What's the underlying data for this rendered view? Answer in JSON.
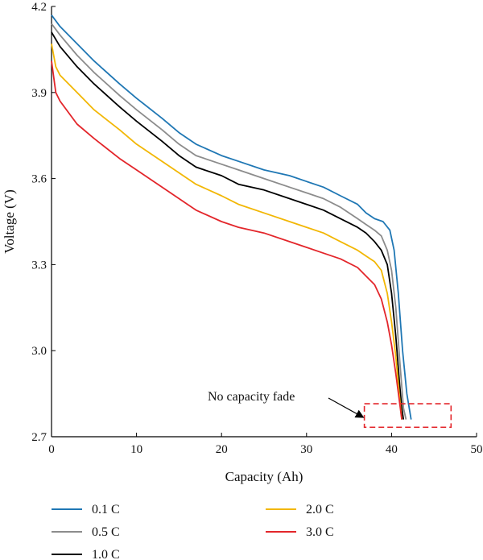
{
  "chart_data": {
    "type": "line",
    "xlabel": "Capacity (Ah)",
    "ylabel": "Voltage (V)",
    "xlim": [
      0,
      50
    ],
    "ylim": [
      2.7,
      4.2
    ],
    "xticks": [
      0,
      10,
      20,
      30,
      40,
      50
    ],
    "yticks": [
      2.7,
      3.0,
      3.3,
      3.6,
      3.9,
      4.2
    ],
    "xtick_labels": [
      "0",
      "10",
      "20",
      "30",
      "40",
      "50"
    ],
    "ytick_labels": [
      "2.7",
      "3.0",
      "3.3",
      "3.6",
      "3.9",
      "4.2"
    ],
    "grid": false,
    "legend_position": "bottom",
    "series": [
      {
        "name": "0.1 C",
        "color": "#1f77b4",
        "points": [
          [
            0,
            4.17
          ],
          [
            1,
            4.13
          ],
          [
            3,
            4.07
          ],
          [
            5,
            4.01
          ],
          [
            8,
            3.93
          ],
          [
            10,
            3.88
          ],
          [
            13,
            3.81
          ],
          [
            15,
            3.76
          ],
          [
            17,
            3.72
          ],
          [
            20,
            3.68
          ],
          [
            22,
            3.66
          ],
          [
            25,
            3.63
          ],
          [
            28,
            3.61
          ],
          [
            30,
            3.59
          ],
          [
            32,
            3.57
          ],
          [
            34,
            3.54
          ],
          [
            36,
            3.51
          ],
          [
            37,
            3.48
          ],
          [
            38,
            3.46
          ],
          [
            39,
            3.45
          ],
          [
            39.8,
            3.42
          ],
          [
            40.3,
            3.35
          ],
          [
            40.8,
            3.2
          ],
          [
            41.3,
            3.0
          ],
          [
            41.8,
            2.85
          ],
          [
            42.3,
            2.76
          ]
        ]
      },
      {
        "name": "0.5 C",
        "color": "#8c8c8c",
        "points": [
          [
            0,
            4.14
          ],
          [
            1,
            4.1
          ],
          [
            3,
            4.03
          ],
          [
            5,
            3.97
          ],
          [
            8,
            3.89
          ],
          [
            10,
            3.84
          ],
          [
            13,
            3.77
          ],
          [
            15,
            3.72
          ],
          [
            17,
            3.68
          ],
          [
            20,
            3.65
          ],
          [
            22,
            3.63
          ],
          [
            25,
            3.6
          ],
          [
            28,
            3.57
          ],
          [
            30,
            3.55
          ],
          [
            32,
            3.53
          ],
          [
            34,
            3.5
          ],
          [
            36,
            3.46
          ],
          [
            37,
            3.44
          ],
          [
            38,
            3.42
          ],
          [
            38.8,
            3.4
          ],
          [
            39.5,
            3.35
          ],
          [
            40,
            3.28
          ],
          [
            40.5,
            3.15
          ],
          [
            41,
            2.95
          ],
          [
            41.4,
            2.8
          ],
          [
            41.7,
            2.76
          ]
        ]
      },
      {
        "name": "1.0 C",
        "color": "#000000",
        "points": [
          [
            0,
            4.11
          ],
          [
            1,
            4.06
          ],
          [
            3,
            3.99
          ],
          [
            5,
            3.93
          ],
          [
            8,
            3.85
          ],
          [
            10,
            3.8
          ],
          [
            13,
            3.73
          ],
          [
            15,
            3.68
          ],
          [
            17,
            3.64
          ],
          [
            20,
            3.61
          ],
          [
            22,
            3.58
          ],
          [
            25,
            3.56
          ],
          [
            28,
            3.53
          ],
          [
            30,
            3.51
          ],
          [
            32,
            3.49
          ],
          [
            34,
            3.46
          ],
          [
            36,
            3.43
          ],
          [
            37,
            3.41
          ],
          [
            38,
            3.38
          ],
          [
            38.8,
            3.35
          ],
          [
            39.5,
            3.3
          ],
          [
            40,
            3.2
          ],
          [
            40.5,
            3.05
          ],
          [
            40.9,
            2.9
          ],
          [
            41.2,
            2.8
          ],
          [
            41.4,
            2.76
          ]
        ]
      },
      {
        "name": "2.0 C",
        "color": "#f2b705",
        "points": [
          [
            0,
            4.07
          ],
          [
            0.5,
            3.99
          ],
          [
            1,
            3.96
          ],
          [
            3,
            3.9
          ],
          [
            5,
            3.84
          ],
          [
            8,
            3.77
          ],
          [
            10,
            3.72
          ],
          [
            13,
            3.66
          ],
          [
            15,
            3.62
          ],
          [
            17,
            3.58
          ],
          [
            20,
            3.54
          ],
          [
            22,
            3.51
          ],
          [
            25,
            3.48
          ],
          [
            28,
            3.45
          ],
          [
            30,
            3.43
          ],
          [
            32,
            3.41
          ],
          [
            34,
            3.38
          ],
          [
            36,
            3.35
          ],
          [
            37,
            3.33
          ],
          [
            38,
            3.31
          ],
          [
            38.8,
            3.28
          ],
          [
            39.5,
            3.2
          ],
          [
            40,
            3.1
          ],
          [
            40.5,
            2.98
          ],
          [
            40.9,
            2.85
          ],
          [
            41.2,
            2.76
          ]
        ]
      },
      {
        "name": "3.0 C",
        "color": "#e3262b",
        "points": [
          [
            0,
            4.01
          ],
          [
            0.5,
            3.9
          ],
          [
            1,
            3.87
          ],
          [
            3,
            3.79
          ],
          [
            5,
            3.74
          ],
          [
            8,
            3.67
          ],
          [
            10,
            3.63
          ],
          [
            13,
            3.57
          ],
          [
            15,
            3.53
          ],
          [
            17,
            3.49
          ],
          [
            20,
            3.45
          ],
          [
            22,
            3.43
          ],
          [
            25,
            3.41
          ],
          [
            28,
            3.38
          ],
          [
            30,
            3.36
          ],
          [
            32,
            3.34
          ],
          [
            34,
            3.32
          ],
          [
            36,
            3.29
          ],
          [
            37,
            3.26
          ],
          [
            38,
            3.23
          ],
          [
            38.8,
            3.18
          ],
          [
            39.5,
            3.1
          ],
          [
            40,
            3.02
          ],
          [
            40.5,
            2.92
          ],
          [
            40.9,
            2.83
          ],
          [
            41.2,
            2.76
          ]
        ]
      }
    ],
    "annotation": {
      "text": "No capacity fade",
      "arrow_target": [
        36.7,
        2.767
      ],
      "box_x": [
        36.8,
        47
      ],
      "box_y": [
        2.733,
        2.815
      ],
      "box_color": "#e3262b"
    }
  }
}
